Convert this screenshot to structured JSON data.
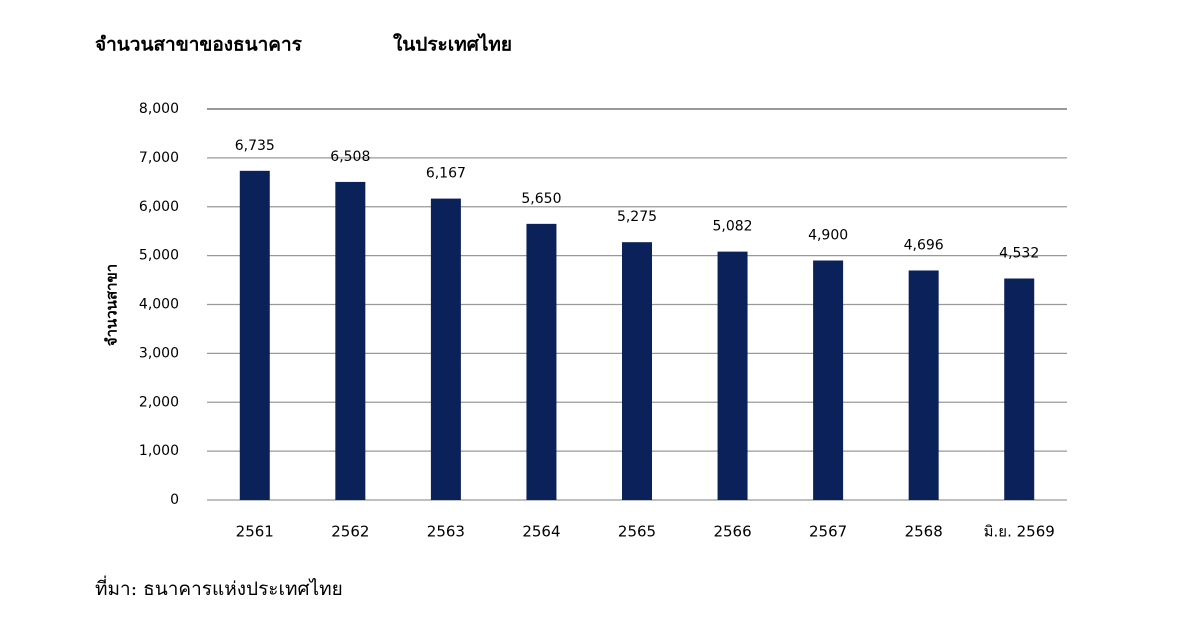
{
  "chart_data": {
    "type": "bar",
    "title": "จำนวนสาขาของธนาคาร",
    "subtitle": "ในประเทศไทย",
    "y_label": "จำนวนสาขา",
    "source": "ที่มา: ธนาคารแห่งประเทศไทย",
    "categories": [
      "2561",
      "2562",
      "2563",
      "2564",
      "2565",
      "2566",
      "2567",
      "2568",
      "มิ.ย. 2569"
    ],
    "values": [
      6735,
      6508,
      6167,
      5650,
      5275,
      5082,
      4900,
      4696,
      4532
    ],
    "value_labels": [
      "6,735",
      "6,508",
      "6,167",
      "5,650",
      "5,275",
      "5,082",
      "4,900",
      "4,696",
      "4,532"
    ],
    "color": "#0b2159",
    "ylim": [
      0,
      8000
    ],
    "yticks": [
      0,
      {
        "value": 1000,
        "label": "1,000"
      },
      {
        "value": 2000,
        "label": "2,000"
      },
      {
        "value": 3000,
        "label": "3,000"
      },
      {
        "value": 4000,
        "label": "4,000"
      },
      {
        "value": 5000,
        "label": "5,000"
      },
      {
        "value": 6000,
        "label": "6,000"
      },
      {
        "value": 7000,
        "label": "7,000"
      },
      {
        "value": 8000,
        "label": "8,000"
      }
    ],
    "grid": true
  }
}
